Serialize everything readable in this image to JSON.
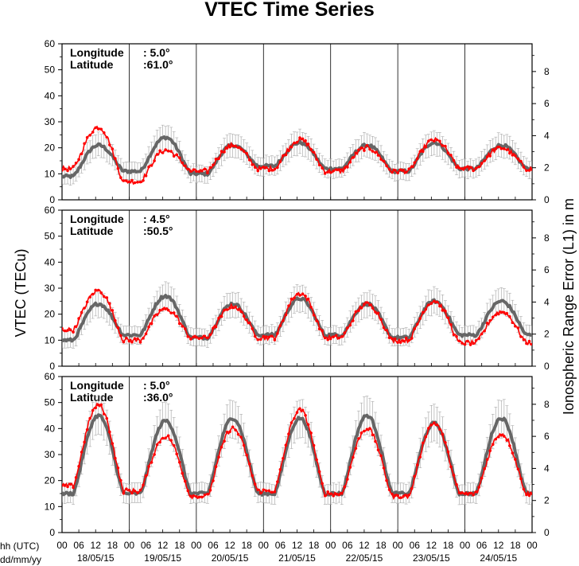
{
  "chart_data": {
    "type": "line",
    "title": "VTEC Time Series",
    "ylabel": "VTEC (TECu)",
    "y2label": "Ionospheric Range Error (L1) in m",
    "xlabel_hh": "hh (UTC)",
    "xlabel_date": "dd/mm/yy",
    "ylim": [
      0,
      60
    ],
    "y2lim": [
      0,
      9.73
    ],
    "yticks": [
      0,
      10,
      20,
      30,
      40,
      50,
      60
    ],
    "y2ticks": [
      0,
      2,
      4,
      6,
      8
    ],
    "days": [
      "18/05/15",
      "19/05/15",
      "20/05/15",
      "21/05/15",
      "22/05/15",
      "23/05/15",
      "24/05/15"
    ],
    "hour_ticks": [
      "00",
      "06",
      "12",
      "18"
    ],
    "colors": {
      "measured": "#ff0000",
      "reference": "#666666",
      "band": "#999999"
    },
    "panels": [
      {
        "longitude_label": "Longitude",
        "longitude_value": ":   5.0°",
        "latitude_label": "Latitude",
        "latitude_value": ":61.0°",
        "reference": {
          "peak": [
            21,
            24,
            21,
            22,
            21,
            22,
            21
          ],
          "trough": [
            9,
            11,
            10,
            13,
            12,
            11,
            12
          ]
        },
        "measured": {
          "peak": [
            28,
            19,
            21,
            23,
            20,
            23,
            20
          ],
          "trough": [
            12,
            7,
            11,
            12,
            11,
            11,
            12
          ]
        }
      },
      {
        "longitude_label": "Longitude",
        "longitude_value": ":   4.5°",
        "latitude_label": "Latitude",
        "latitude_value": ":50.5°",
        "reference": {
          "peak": [
            24,
            27,
            24,
            26,
            24,
            25,
            25
          ],
          "trough": [
            10,
            12,
            11,
            12,
            12,
            11,
            12
          ]
        },
        "measured": {
          "peak": [
            29,
            22,
            23,
            28,
            24,
            25,
            21
          ],
          "trough": [
            14,
            10,
            11,
            11,
            11,
            10,
            9
          ]
        }
      },
      {
        "longitude_label": "Longitude",
        "longitude_value": ":   5.0°",
        "latitude_label": "Latitude",
        "latitude_value": ":36.0°",
        "reference": {
          "peak": [
            45,
            43,
            44,
            44,
            45,
            42,
            44
          ],
          "trough": [
            15,
            15,
            15,
            15,
            15,
            15,
            15
          ]
        },
        "measured": {
          "peak": [
            49,
            37,
            40,
            47,
            40,
            42,
            38
          ],
          "trough": [
            18,
            16,
            14,
            16,
            15,
            14,
            15
          ]
        }
      }
    ]
  }
}
